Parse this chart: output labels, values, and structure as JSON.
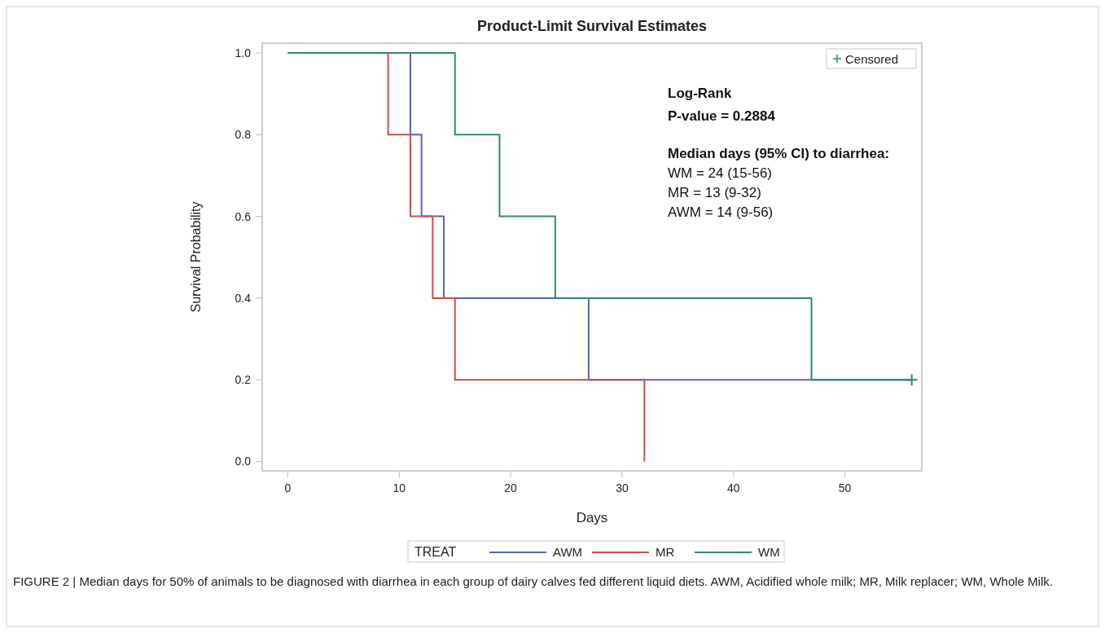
{
  "chart_data": {
    "type": "step",
    "title": "Product-Limit Survival Estimates",
    "xlabel": "Days",
    "ylabel": "Survival Probability",
    "legend_title": "TREAT",
    "legend": "bottom",
    "xlim": [
      -2.3,
      56.9
    ],
    "xticks": [
      0,
      10,
      20,
      30,
      40,
      50
    ],
    "ylim": [
      -0.023,
      1.024
    ],
    "yticks": [
      {
        "value": 0,
        "label": "0.0"
      },
      {
        "value": 0.2,
        "label": "0.2"
      },
      {
        "value": 0.4,
        "label": "0.4"
      },
      {
        "value": 0.6,
        "label": "0.6"
      },
      {
        "value": 0.8,
        "label": "0.8"
      },
      {
        "value": 1,
        "label": "1.0"
      }
    ],
    "grid": false,
    "series": [
      {
        "name": "AWM",
        "color": "#5a64b8",
        "x": [
          0,
          11,
          12,
          14,
          27,
          56
        ],
        "values": [
          1,
          0.8,
          0.6,
          0.4,
          0.2,
          0.2
        ]
      },
      {
        "name": "MR",
        "color": "#c5504a",
        "x": [
          0,
          9,
          11,
          13,
          15,
          32
        ],
        "values": [
          1,
          0.8,
          0.6,
          0.4,
          0.2,
          0
        ]
      },
      {
        "name": "WM",
        "color": "#2a8a7c",
        "x": [
          0,
          15,
          19,
          24,
          47,
          56
        ],
        "values": [
          1,
          0.8,
          0.6,
          0.4,
          0.2,
          0.2
        ]
      },
      {
        "name": "Censored",
        "type": "scatter",
        "marker": "cross",
        "color": "#2a8a7c",
        "x": [
          56
        ],
        "values": [
          0.2
        ]
      }
    ],
    "annotations": [
      "Log-Rank",
      "P-value = 0.2884",
      "Median days (95% CI) to diarrhea:",
      "WM = 24 (15-56)",
      "MR =  13 (9-32)",
      "AWM = 14 (9-56)",
      "FIGURE 2 | Median days for 50% of animals to be diagnosed with diarrhea in each group of dairy calves fed different liquid diets. AWM, Acidified whole milk; MR, Milk replacer; WM, Whole Milk."
    ]
  }
}
